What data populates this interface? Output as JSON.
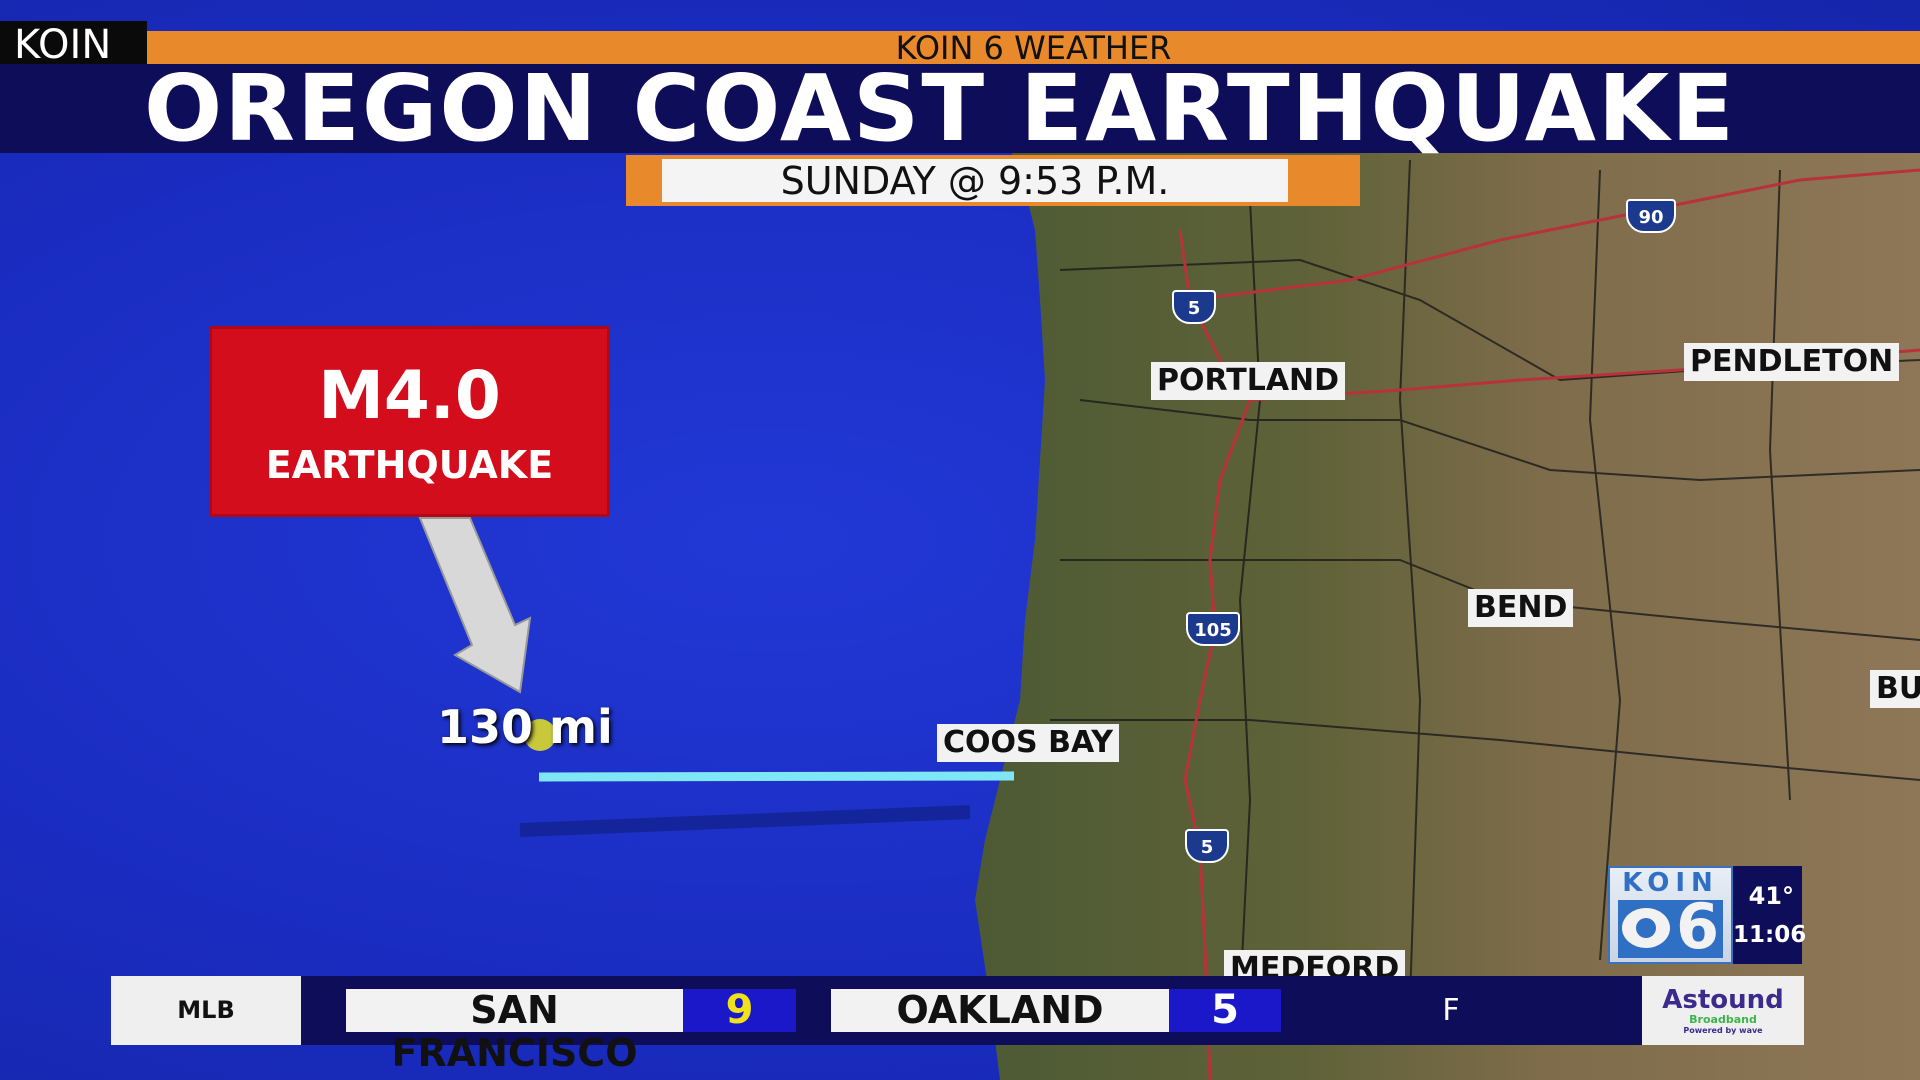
{
  "header": {
    "station_tag": "KOIN",
    "network_bar": "KOIN 6 WEATHER",
    "title": "OREGON COAST EARTHQUAKE",
    "time_banner": "SUNDAY @ 9:53 P.M."
  },
  "quake": {
    "magnitude": "M4.0",
    "label": "EARTHQUAKE",
    "distance": "130 mi"
  },
  "map": {
    "cities": [
      "PORTLAND",
      "PENDLETON",
      "BEND",
      "BU",
      "COOS BAY",
      "MEDFORD"
    ],
    "shields": [
      "5",
      "105",
      "5",
      "90"
    ]
  },
  "ticker": {
    "league": "MLB",
    "home": {
      "team": "SAN FRANCISCO",
      "score": "9"
    },
    "away": {
      "team": "OAKLAND",
      "score": "5"
    },
    "status": "F",
    "sponsor": "Astound",
    "sponsor_sub": "Broadband",
    "sponsor_tag": "Powered by wave"
  },
  "bug": {
    "logo_text": "KOIN",
    "logo_num": "6",
    "temp": "41°",
    "time": "11:06"
  },
  "colors": {
    "ocean": "#1b2fc4",
    "title_band": "#0e0d5a",
    "orange": "#e8892c",
    "alert_red": "#d40d1c",
    "score_blue": "#1a18c8",
    "distance_line": "#7fe6f5"
  }
}
